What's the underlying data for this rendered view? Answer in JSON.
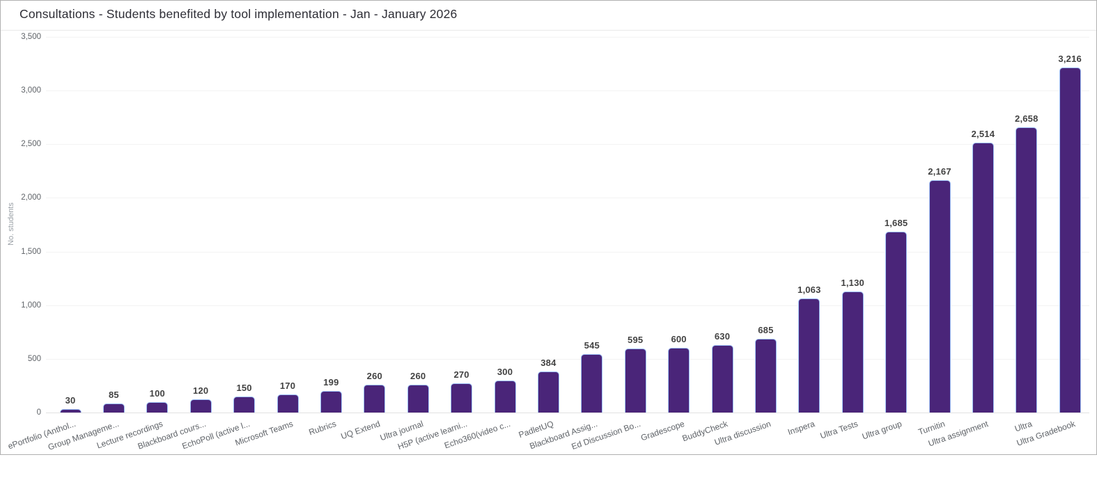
{
  "title": "Consultations - Students benefited by tool implementation - Jan - January 2026",
  "chart_data": {
    "type": "bar",
    "title": "Consultations - Students benefited by tool implementation - Jan - January 2026",
    "xlabel": "",
    "ylabel": "No. students",
    "ylim": [
      0,
      3500
    ],
    "ytick_step": 500,
    "grid": true,
    "legend": "none",
    "bar_color": "#4a2579",
    "bar_border_color": "#9ec1f7",
    "categories": [
      "ePortfolio (Anthol...",
      "Group Manageme...",
      "Lecture recordings",
      "Blackboard cours...",
      "EchoPoll (active l...",
      "Microsoft Teams",
      "Rubrics",
      "UQ Extend",
      "Ultra journal",
      "H5P (active learni...",
      "Echo360(video c...",
      "PadletUQ",
      "Blackboard Assig...",
      "Ed Discussion Bo...",
      "Gradescope",
      "BuddyCheck",
      "Ultra discussion",
      "Inspera",
      "Ultra Tests",
      "Ultra group",
      "Turnitin",
      "Ultra assignment",
      "Ultra",
      "Ultra Gradebook"
    ],
    "values": [
      30,
      85,
      100,
      120,
      150,
      170,
      199,
      260,
      260,
      270,
      300,
      384,
      545,
      595,
      600,
      630,
      685,
      1063,
      1130,
      1685,
      2167,
      2514,
      2658,
      3216
    ],
    "ytick_labels": [
      "0",
      "500",
      "1,000",
      "1,500",
      "2,000",
      "2,500",
      "3,000",
      "3,500"
    ]
  },
  "colors": {
    "bar_fill": "#4a2579",
    "bar_border": "#9ec1f7",
    "title_text": "#2d2d35",
    "axis_text": "#5f6368",
    "axis_title_text": "#9aa0a6",
    "data_label_text": "#424242",
    "gridline": "#f3f3f3",
    "baseline": "#e2e2e2",
    "canvas_border": "#b0b0b0"
  }
}
